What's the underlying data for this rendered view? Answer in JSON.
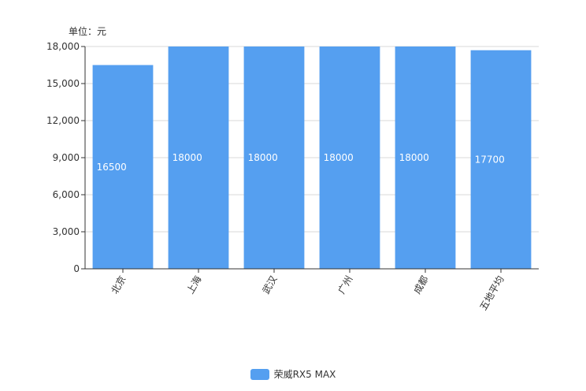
{
  "unit_label": "单位：元",
  "chart_data": {
    "type": "bar",
    "categories": [
      "北京",
      "上海",
      "武汉",
      "广州",
      "成都",
      "五地平均"
    ],
    "series": [
      {
        "name": "荣威RX5 MAX",
        "values": [
          16500,
          18000,
          18000,
          18000,
          18000,
          17700
        ]
      }
    ],
    "ylim": [
      0,
      18000
    ],
    "yticks": [
      0,
      3000,
      6000,
      9000,
      12000,
      15000,
      18000
    ],
    "ytick_labels": [
      "0",
      "3,000",
      "6,000",
      "9,000",
      "12,000",
      "15,000",
      "18,000"
    ],
    "data_labels": [
      "16500",
      "18000",
      "18000",
      "18000",
      "18000",
      "17700"
    ],
    "grid": true,
    "legend_position": "bottom",
    "colors": {
      "bar": "#559ff0",
      "grid": "#d9d9d9",
      "axis": "#333333"
    }
  }
}
